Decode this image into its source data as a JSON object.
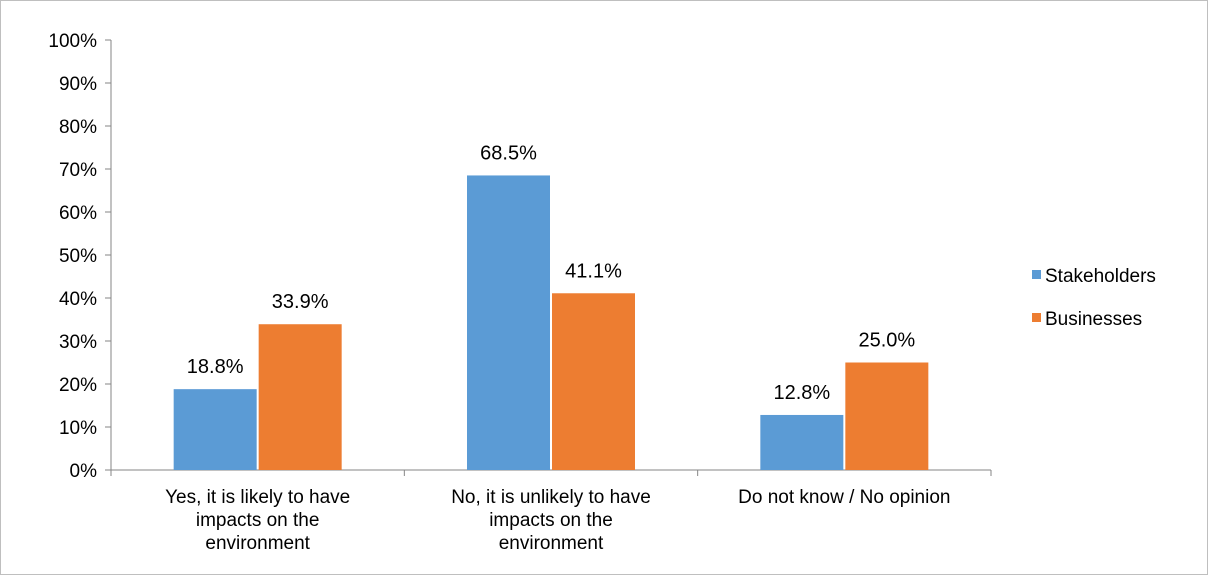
{
  "chart_data": {
    "type": "bar",
    "categories": [
      [
        "Yes, it is likely to have",
        "impacts on the",
        "environment"
      ],
      [
        "No, it is unlikely to have",
        "impacts on the",
        "environment"
      ],
      [
        "Do not know / No opinion"
      ]
    ],
    "series": [
      {
        "name": "Stakeholders",
        "color": "#5b9bd5",
        "values": [
          18.8,
          68.5,
          12.8
        ],
        "labels": [
          "18.8%",
          "68.5%",
          "12.8%"
        ]
      },
      {
        "name": "Businesses",
        "color": "#ed7d31",
        "values": [
          33.9,
          41.1,
          25.0
        ],
        "labels": [
          "33.9%",
          "41.1%",
          "25.0%"
        ]
      }
    ],
    "yticks": [
      "0%",
      "10%",
      "20%",
      "30%",
      "40%",
      "50%",
      "60%",
      "70%",
      "80%",
      "90%",
      "100%"
    ],
    "ylim": [
      0,
      100
    ],
    "legend": "right",
    "grid": false
  }
}
